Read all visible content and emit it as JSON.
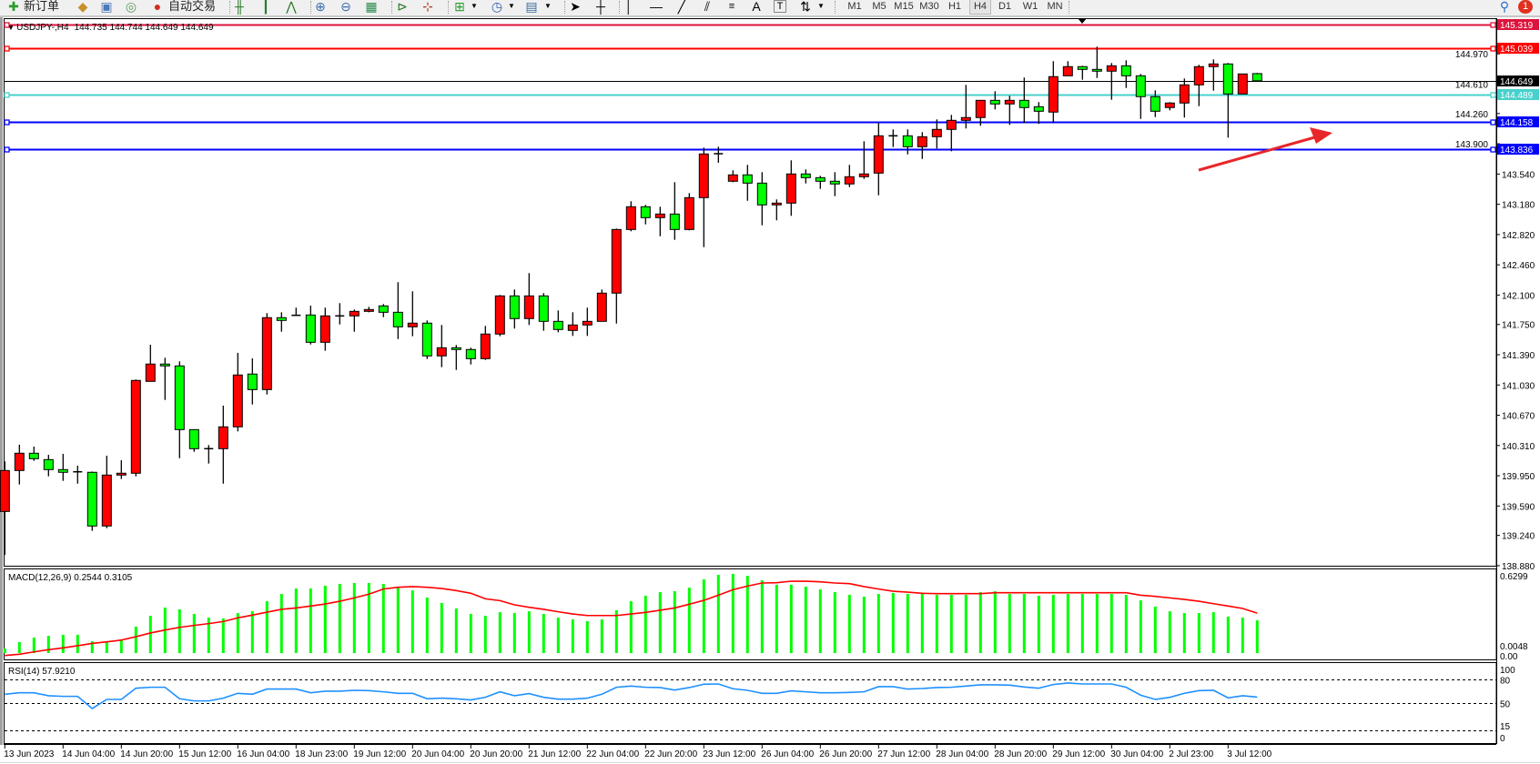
{
  "toolbar": {
    "new_order": "新订单",
    "auto_trading": "自动交易",
    "timeframes": [
      "M1",
      "M5",
      "M15",
      "M30",
      "H1",
      "H4",
      "D1",
      "W1",
      "MN"
    ],
    "active_timeframe": "H4",
    "notification_count": "1",
    "text_tool": "A",
    "label_tool": "T"
  },
  "chart": {
    "symbol_timeframe": "USDJPY-,H4",
    "ohlc_readout": "144.735 144.744 144.649 144.649"
  },
  "colors": {
    "bull_candle": "#ff0000",
    "bear_candle": "#00ff00",
    "macd_histogram": "#00ff00",
    "macd_signal": "#ff0000",
    "rsi_line": "#1e90ff",
    "annotation_arrow": "#e8262a"
  },
  "chart_data": {
    "type": "candlestick",
    "symbol": "USDJPY-",
    "timeframe": "H4",
    "ohlc_columns": [
      "open",
      "high",
      "low",
      "close"
    ],
    "ohlc": [
      [
        139.525,
        140.121,
        139.009,
        140.012
      ],
      [
        140.012,
        140.319,
        139.846,
        140.218
      ],
      [
        140.218,
        140.297,
        140.127,
        140.153
      ],
      [
        140.142,
        140.199,
        139.943,
        140.023
      ],
      [
        140.023,
        140.21,
        139.889,
        139.991
      ],
      [
        139.997,
        140.07,
        139.856,
        139.997
      ],
      [
        139.991,
        140.0,
        139.294,
        139.352
      ],
      [
        139.352,
        140.189,
        139.326,
        139.958
      ],
      [
        139.958,
        140.135,
        139.911,
        139.98
      ],
      [
        139.98,
        141.095,
        139.943,
        141.084
      ],
      [
        141.073,
        141.509,
        141.073,
        141.279
      ],
      [
        141.279,
        141.354,
        140.852,
        141.257
      ],
      [
        141.257,
        141.311,
        140.159,
        140.499
      ],
      [
        140.499,
        140.499,
        140.235,
        140.272
      ],
      [
        140.272,
        140.315,
        140.095,
        140.272
      ],
      [
        140.272,
        140.784,
        139.856,
        140.532
      ],
      [
        140.532,
        141.412,
        140.478,
        141.149
      ],
      [
        141.16,
        141.347,
        140.798,
        140.975
      ],
      [
        140.975,
        141.885,
        140.917,
        141.831
      ],
      [
        141.831,
        141.895,
        141.664,
        141.798
      ],
      [
        141.859,
        141.95,
        141.859,
        141.859
      ],
      [
        141.863,
        141.974,
        141.512,
        141.538
      ],
      [
        141.538,
        141.95,
        141.437,
        141.852
      ],
      [
        141.852,
        142.004,
        141.75,
        141.852
      ],
      [
        141.852,
        141.928,
        141.664,
        141.906
      ],
      [
        141.906,
        141.96,
        141.895,
        141.928
      ],
      [
        141.971,
        141.993,
        141.837,
        141.895
      ],
      [
        141.895,
        142.253,
        141.577,
        141.722
      ],
      [
        141.722,
        142.144,
        141.61,
        141.766
      ],
      [
        141.766,
        141.798,
        141.339,
        141.376
      ],
      [
        141.376,
        141.744,
        141.242,
        141.473
      ],
      [
        141.473,
        141.506,
        141.209,
        141.452
      ],
      [
        141.452,
        141.473,
        141.274,
        141.343
      ],
      [
        141.343,
        141.733,
        141.328,
        141.636
      ],
      [
        141.636,
        142.101,
        141.61,
        142.09
      ],
      [
        142.09,
        142.166,
        141.701,
        141.82
      ],
      [
        141.82,
        142.361,
        141.744,
        142.09
      ],
      [
        142.09,
        142.123,
        141.675,
        141.787
      ],
      [
        141.787,
        141.917,
        141.657,
        141.69
      ],
      [
        141.679,
        141.895,
        141.614,
        141.744
      ],
      [
        141.744,
        141.95,
        141.614,
        141.787
      ],
      [
        141.787,
        142.166,
        141.787,
        142.123
      ],
      [
        142.123,
        142.891,
        141.761,
        142.88
      ],
      [
        142.88,
        143.216,
        142.859,
        143.151
      ],
      [
        143.151,
        143.173,
        142.941,
        143.021
      ],
      [
        143.021,
        143.151,
        142.8,
        143.064
      ],
      [
        143.064,
        143.443,
        142.757,
        142.88
      ],
      [
        142.88,
        143.313,
        142.87,
        143.259
      ],
      [
        143.259,
        143.854,
        142.67,
        143.779
      ],
      [
        143.782,
        143.865,
        143.674,
        143.782
      ],
      [
        143.454,
        143.584,
        143.443,
        143.53
      ],
      [
        143.53,
        143.649,
        143.222,
        143.432
      ],
      [
        143.432,
        143.562,
        142.93,
        143.173
      ],
      [
        143.173,
        143.238,
        142.989,
        143.194
      ],
      [
        143.194,
        143.703,
        143.043,
        143.541
      ],
      [
        143.541,
        143.595,
        143.428,
        143.497
      ],
      [
        143.497,
        143.519,
        143.363,
        143.454
      ],
      [
        143.454,
        143.562,
        143.277,
        143.422
      ],
      [
        143.422,
        143.649,
        143.385,
        143.508
      ],
      [
        143.508,
        143.93,
        143.482,
        143.541
      ],
      [
        143.551,
        144.15,
        143.287,
        143.995
      ],
      [
        143.995,
        144.071,
        143.861,
        143.995
      ],
      [
        143.995,
        144.071,
        143.774,
        143.865
      ],
      [
        143.865,
        144.038,
        143.72,
        143.984
      ],
      [
        143.984,
        144.19,
        143.844,
        144.071
      ],
      [
        144.071,
        144.244,
        143.811,
        144.179
      ],
      [
        144.179,
        144.601,
        144.082,
        144.212
      ],
      [
        144.212,
        144.417,
        144.114,
        144.417
      ],
      [
        144.417,
        144.525,
        144.309,
        144.374
      ],
      [
        144.374,
        144.471,
        144.125,
        144.417
      ],
      [
        144.417,
        144.688,
        144.147,
        144.331
      ],
      [
        144.341,
        144.396,
        144.136,
        144.287
      ],
      [
        144.277,
        144.883,
        144.147,
        144.699
      ],
      [
        144.709,
        144.883,
        144.709,
        144.818
      ],
      [
        144.818,
        144.828,
        144.662,
        144.785
      ],
      [
        144.785,
        145.056,
        144.683,
        144.764
      ],
      [
        144.764,
        144.861,
        144.424,
        144.828
      ],
      [
        144.828,
        144.893,
        144.564,
        144.709
      ],
      [
        144.709,
        144.731,
        144.196,
        144.461
      ],
      [
        144.461,
        144.536,
        144.218,
        144.287
      ],
      [
        144.331,
        144.396,
        144.298,
        144.385
      ],
      [
        144.385,
        144.677,
        144.212,
        144.601
      ],
      [
        144.601,
        144.839,
        144.348,
        144.818
      ],
      [
        144.818,
        144.904,
        144.532,
        144.85
      ],
      [
        144.85,
        144.861,
        143.973,
        144.493
      ],
      [
        144.493,
        144.731,
        144.493,
        144.731
      ],
      [
        144.735,
        144.744,
        144.649,
        144.649
      ]
    ],
    "price_axis_ticks": [
      "144.970",
      "144.610",
      "144.260",
      "143.900",
      "143.540",
      "143.180",
      "142.820",
      "142.460",
      "142.100",
      "141.750",
      "141.390",
      "141.030",
      "140.670",
      "140.310",
      "139.950",
      "139.590",
      "139.240",
      "138.880"
    ],
    "time_labels": [
      "13 Jun 2023",
      "14 Jun 04:00",
      "14 Jun 20:00",
      "15 Jun 12:00",
      "16 Jun 04:00",
      "18 Jun 23:00",
      "19 Jun 12:00",
      "20 Jun 04:00",
      "20 Jun 20:00",
      "21 Jun 12:00",
      "22 Jun 04:00",
      "22 Jun 20:00",
      "23 Jun 12:00",
      "26 Jun 04:00",
      "26 Jun 20:00",
      "27 Jun 12:00",
      "28 Jun 04:00",
      "28 Jun 20:00",
      "29 Jun 12:00",
      "30 Jun 04:00",
      "2 Jul 23:00",
      "3 Jul 12:00"
    ],
    "horizontal_lines": [
      {
        "price": 145.319,
        "label": "145.319",
        "color": "#dc143c"
      },
      {
        "price": 145.039,
        "label": "145.039",
        "color": "#ff0000"
      },
      {
        "price": 144.649,
        "label": "144.649",
        "color": "#000000",
        "kind": "bid"
      },
      {
        "price": 144.489,
        "label": "144.489",
        "color": "#48d1cc"
      },
      {
        "price": 144.158,
        "label": "144.158",
        "color": "#0000ff"
      },
      {
        "price": 143.836,
        "label": "143.836",
        "color": "#0000ff"
      }
    ],
    "macd": {
      "label": "MACD(12,26,9) 0.2544 0.3105",
      "axis_labels": [
        "0.6299",
        "0.0048",
        "0.00"
      ],
      "range": [
        0,
        0.6299
      ],
      "histogram": [
        0.035,
        0.085,
        0.12,
        0.134,
        0.142,
        0.142,
        0.092,
        0.092,
        0.099,
        0.205,
        0.29,
        0.354,
        0.34,
        0.304,
        0.276,
        0.269,
        0.311,
        0.325,
        0.403,
        0.46,
        0.502,
        0.502,
        0.524,
        0.538,
        0.545,
        0.545,
        0.538,
        0.509,
        0.488,
        0.432,
        0.389,
        0.347,
        0.304,
        0.29,
        0.318,
        0.311,
        0.325,
        0.304,
        0.276,
        0.262,
        0.248,
        0.262,
        0.333,
        0.403,
        0.446,
        0.474,
        0.481,
        0.509,
        0.573,
        0.608,
        0.616,
        0.601,
        0.566,
        0.531,
        0.531,
        0.517,
        0.495,
        0.474,
        0.453,
        0.439,
        0.46,
        0.467,
        0.46,
        0.46,
        0.453,
        0.453,
        0.453,
        0.474,
        0.481,
        0.46,
        0.46,
        0.446,
        0.453,
        0.46,
        0.46,
        0.46,
        0.46,
        0.453,
        0.41,
        0.361,
        0.325,
        0.311,
        0.311,
        0.318,
        0.283,
        0.276,
        0.2544
      ],
      "signal": [
        -0.019,
        -0.009,
        0.009,
        0.026,
        0.04,
        0.057,
        0.075,
        0.087,
        0.101,
        0.127,
        0.156,
        0.179,
        0.2,
        0.215,
        0.229,
        0.245,
        0.274,
        0.295,
        0.318,
        0.34,
        0.351,
        0.366,
        0.382,
        0.403,
        0.429,
        0.458,
        0.498,
        0.512,
        0.517,
        0.512,
        0.502,
        0.486,
        0.465,
        0.422,
        0.408,
        0.375,
        0.356,
        0.34,
        0.321,
        0.304,
        0.292,
        0.292,
        0.292,
        0.304,
        0.316,
        0.333,
        0.351,
        0.38,
        0.41,
        0.45,
        0.493,
        0.521,
        0.545,
        0.547,
        0.559,
        0.559,
        0.554,
        0.545,
        0.54,
        0.517,
        0.498,
        0.481,
        0.474,
        0.465,
        0.462,
        0.462,
        0.462,
        0.462,
        0.469,
        0.469,
        0.469,
        0.469,
        0.469,
        0.469,
        0.469,
        0.469,
        0.469,
        0.469,
        0.45,
        0.441,
        0.429,
        0.417,
        0.403,
        0.384,
        0.366,
        0.347,
        0.3105
      ]
    },
    "rsi": {
      "label": "RSI(14) 57.9210",
      "levels": [
        80,
        50,
        15
      ],
      "axis_labels": [
        "100",
        "80",
        "50",
        "15",
        "0"
      ],
      "range": [
        0,
        100
      ],
      "values": [
        61.6,
        63.5,
        63.5,
        59.7,
        58.9,
        58.9,
        43.4,
        55.0,
        55.0,
        69.3,
        70.5,
        70.5,
        55.8,
        53.1,
        53.1,
        56.6,
        62.8,
        61.6,
        68.2,
        68.2,
        68.2,
        63.5,
        65.5,
        65.5,
        66.6,
        66.2,
        64.7,
        62.8,
        62.8,
        55.8,
        56.6,
        55.8,
        54.3,
        57.7,
        64.7,
        59.7,
        62.4,
        57.7,
        55.4,
        55.4,
        56.6,
        61.6,
        70.5,
        72.0,
        70.5,
        70.1,
        67.0,
        70.1,
        74.4,
        74.7,
        68.6,
        66.6,
        62.8,
        62.8,
        65.9,
        64.7,
        63.5,
        63.5,
        63.9,
        64.7,
        71.3,
        71.3,
        68.2,
        68.9,
        70.1,
        70.5,
        72.0,
        73.6,
        73.6,
        73.2,
        70.9,
        69.3,
        74.0,
        75.9,
        74.7,
        74.7,
        74.7,
        70.5,
        60.4,
        55.0,
        57.7,
        62.8,
        66.2,
        66.6,
        57.0,
        59.7,
        57.921
      ]
    }
  }
}
